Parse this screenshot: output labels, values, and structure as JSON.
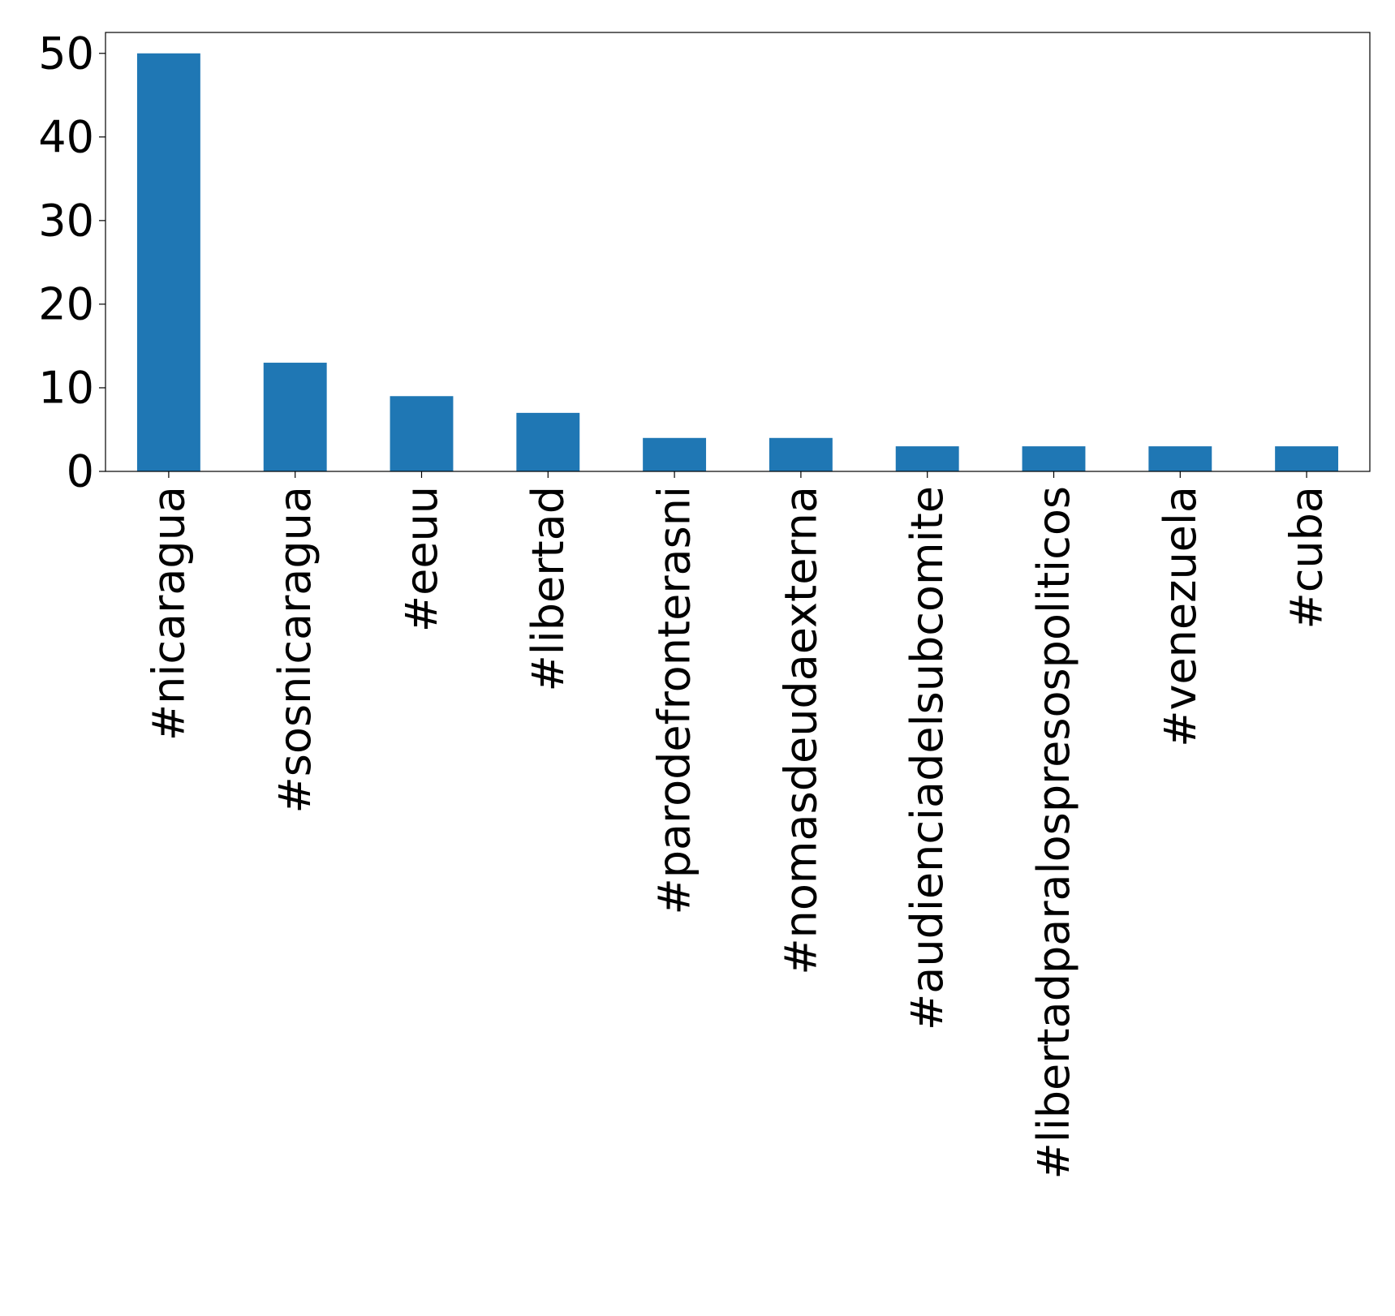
{
  "chart_data": {
    "type": "bar",
    "title": "",
    "xlabel": "",
    "ylabel": "",
    "categories": [
      "#nicaragua",
      "#sosnicaragua",
      "#eeuu",
      "#libertad",
      "#parodefronterasni",
      "#nomasdeudaexterna",
      "#audienciadelsubcomite",
      "#libertadparalospresospoliticos",
      "#venezuela",
      "#cuba"
    ],
    "values": [
      50,
      13,
      9,
      7,
      4,
      4,
      3,
      3,
      3,
      3
    ],
    "ylim": [
      0,
      52.5
    ],
    "yticks": [
      0,
      10,
      20,
      30,
      40,
      50
    ],
    "bar_color": "#1f77b4",
    "grid": false,
    "legend": "none"
  }
}
